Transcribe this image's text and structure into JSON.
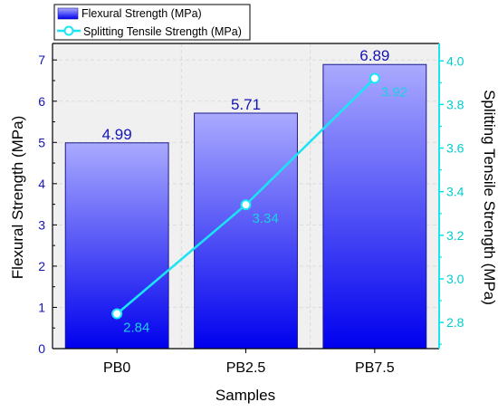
{
  "chart_data": {
    "type": "bar",
    "categories": [
      "PB0",
      "PB2.5",
      "PB7.5"
    ],
    "xlabel": "Samples",
    "series": [
      {
        "name": "Flexural Strength (MPa)",
        "type": "bar",
        "axis": "left",
        "values": [
          4.99,
          5.71,
          6.89
        ],
        "labels": [
          "4.99",
          "5.71",
          "6.89"
        ]
      },
      {
        "name": "Splitting Tensile Strength (MPa)",
        "type": "line",
        "axis": "right",
        "values": [
          2.84,
          3.34,
          3.92
        ],
        "labels": [
          "2.84",
          "3.34",
          "3.92"
        ]
      }
    ],
    "y_left": {
      "label": "Flexural Strength (MPa)",
      "range": [
        0,
        7.4
      ],
      "ticks": [
        0,
        1,
        2,
        3,
        4,
        5,
        6,
        7
      ],
      "tick_labels": [
        "0",
        "1",
        "2",
        "3",
        "4",
        "5",
        "6",
        "7"
      ]
    },
    "y_right": {
      "label": "Splitting Tensile Strength (MPa)",
      "range": [
        2.68,
        4.08
      ],
      "ticks": [
        2.8,
        3.0,
        3.2,
        3.4,
        3.6,
        3.8,
        4.0
      ],
      "tick_labels": [
        "2.8",
        "3.0",
        "3.2",
        "3.4",
        "3.6",
        "3.8",
        "4.0"
      ]
    },
    "grid": true,
    "legend_position": "top-left",
    "colors": {
      "bar_top": "#aaaaff",
      "bar_bottom": "#0000ee",
      "bar_edge": "#1a1a8a",
      "line": "#19e5f5",
      "right_axis": "#00e5ee",
      "bar_label": "#1414b4",
      "line_label": "#1ecfe0",
      "plot_background": "#f0f0f0"
    }
  }
}
